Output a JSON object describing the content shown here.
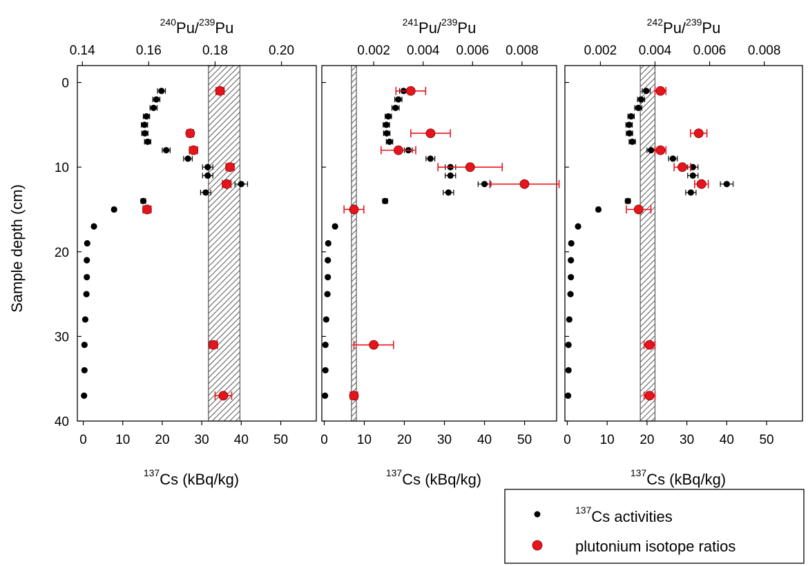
{
  "chart_data": [
    {
      "type": "scatter",
      "ylabel": "Sample depth (cm)",
      "ylim": [
        40,
        -2
      ],
      "yticks": [
        0,
        10,
        20,
        30,
        40
      ],
      "x_bottom": {
        "label_sup": "137",
        "label_main": "Cs (kBq/kg)",
        "lim": [
          -1.5,
          59
        ],
        "ticks": [
          0,
          10,
          20,
          30,
          40,
          50
        ]
      },
      "x_top": {
        "label_parts": [
          "240",
          "Pu/",
          "239",
          "Pu"
        ],
        "lim": [
          0.1385,
          0.2105
        ],
        "ticks": [
          0.14,
          0.16,
          0.18,
          0.2
        ],
        "tick_labels": [
          "0.14",
          "0.16",
          "0.18",
          "0.20"
        ]
      },
      "band": {
        "range": [
          0.178,
          0.1875
        ]
      },
      "cs": [
        {
          "depth": 1,
          "value": 19.8,
          "err": 1.0
        },
        {
          "depth": 2,
          "value": 18.5,
          "err": 0.9
        },
        {
          "depth": 3,
          "value": 17.8,
          "err": 0.9
        },
        {
          "depth": 4,
          "value": 16.0,
          "err": 0.8
        },
        {
          "depth": 5,
          "value": 15.5,
          "err": 0.8
        },
        {
          "depth": 6,
          "value": 15.6,
          "err": 0.8
        },
        {
          "depth": 7,
          "value": 16.3,
          "err": 0.8
        },
        {
          "depth": 8,
          "value": 21.0,
          "err": 1.0
        },
        {
          "depth": 9,
          "value": 26.5,
          "err": 1.1
        },
        {
          "depth": 10,
          "value": 31.5,
          "err": 1.3
        },
        {
          "depth": 11,
          "value": 31.5,
          "err": 1.3
        },
        {
          "depth": 12,
          "value": 40.0,
          "err": 1.6
        },
        {
          "depth": 13,
          "value": 31.0,
          "err": 1.3
        },
        {
          "depth": 14,
          "value": 15.2,
          "err": 0.6
        },
        {
          "depth": 15,
          "value": 7.8,
          "err": 0.4
        },
        {
          "depth": 17,
          "value": 2.7,
          "err": 0.2
        },
        {
          "depth": 19,
          "value": 1.0,
          "err": 0
        },
        {
          "depth": 21,
          "value": 0.9,
          "err": 0
        },
        {
          "depth": 23,
          "value": 0.9,
          "err": 0
        },
        {
          "depth": 25,
          "value": 0.8,
          "err": 0
        },
        {
          "depth": 28,
          "value": 0.5,
          "err": 0
        },
        {
          "depth": 31,
          "value": 0.3,
          "err": 0
        },
        {
          "depth": 34,
          "value": 0.3,
          "err": 0
        },
        {
          "depth": 37,
          "value": 0.2,
          "err": 0
        }
      ],
      "pu": [
        {
          "depth": 1,
          "value": 0.1815,
          "err": 0.0012
        },
        {
          "depth": 6,
          "value": 0.1725,
          "err": 0.001
        },
        {
          "depth": 8,
          "value": 0.1735,
          "err": 0.0012
        },
        {
          "depth": 10,
          "value": 0.1845,
          "err": 0.0012
        },
        {
          "depth": 12,
          "value": 0.1835,
          "err": 0.0013
        },
        {
          "depth": 15,
          "value": 0.1595,
          "err": 0.0012
        },
        {
          "depth": 31,
          "value": 0.1795,
          "err": 0.0012
        },
        {
          "depth": 37,
          "value": 0.1825,
          "err": 0.0025
        }
      ]
    },
    {
      "type": "scatter",
      "ylim": [
        40,
        -2
      ],
      "x_bottom": {
        "label_sup": "137",
        "label_main": "Cs (kBq/kg)",
        "lim": [
          -0.6,
          58
        ],
        "ticks": [
          0,
          10,
          20,
          30,
          40,
          50
        ]
      },
      "x_top": {
        "label_parts": [
          "241",
          "Pu/",
          "239",
          "Pu"
        ],
        "lim": [
          -0.0001,
          0.0094
        ],
        "ticks": [
          0.002,
          0.004,
          0.006,
          0.008
        ],
        "tick_labels": [
          "0.002",
          "0.004",
          "0.006",
          "0.008"
        ]
      },
      "band": {
        "range": [
          0.0011,
          0.0013
        ]
      },
      "cs": [
        {
          "depth": 1,
          "value": 19.8,
          "err": 1.0
        },
        {
          "depth": 2,
          "value": 18.5,
          "err": 0.9
        },
        {
          "depth": 3,
          "value": 17.8,
          "err": 0.9
        },
        {
          "depth": 4,
          "value": 16.0,
          "err": 0.8
        },
        {
          "depth": 5,
          "value": 15.5,
          "err": 0.8
        },
        {
          "depth": 6,
          "value": 15.6,
          "err": 0.8
        },
        {
          "depth": 7,
          "value": 16.3,
          "err": 0.8
        },
        {
          "depth": 8,
          "value": 21.0,
          "err": 1.0
        },
        {
          "depth": 9,
          "value": 26.5,
          "err": 1.1
        },
        {
          "depth": 10,
          "value": 31.5,
          "err": 1.3
        },
        {
          "depth": 11,
          "value": 31.5,
          "err": 1.3
        },
        {
          "depth": 12,
          "value": 40.0,
          "err": 1.6
        },
        {
          "depth": 13,
          "value": 31.0,
          "err": 1.3
        },
        {
          "depth": 14,
          "value": 15.2,
          "err": 0.6
        },
        {
          "depth": 15,
          "value": 7.8,
          "err": 0.4
        },
        {
          "depth": 17,
          "value": 2.7,
          "err": 0.2
        },
        {
          "depth": 19,
          "value": 1.0,
          "err": 0
        },
        {
          "depth": 21,
          "value": 0.9,
          "err": 0
        },
        {
          "depth": 23,
          "value": 0.9,
          "err": 0
        },
        {
          "depth": 25,
          "value": 0.8,
          "err": 0
        },
        {
          "depth": 28,
          "value": 0.5,
          "err": 0
        },
        {
          "depth": 31,
          "value": 0.3,
          "err": 0
        },
        {
          "depth": 34,
          "value": 0.3,
          "err": 0
        },
        {
          "depth": 37,
          "value": 0.2,
          "err": 0
        }
      ],
      "pu": [
        {
          "depth": 1,
          "value": 0.0035,
          "err": 0.0006
        },
        {
          "depth": 6,
          "value": 0.0043,
          "err": 0.0008
        },
        {
          "depth": 8,
          "value": 0.003,
          "err": 0.0007
        },
        {
          "depth": 10,
          "value": 0.0059,
          "err": 0.0013
        },
        {
          "depth": 12,
          "value": 0.0081,
          "err": 0.0014
        },
        {
          "depth": 15,
          "value": 0.0012,
          "err": 0.0004
        },
        {
          "depth": 31,
          "value": 0.002,
          "err": 0.0008
        },
        {
          "depth": 37,
          "value": 0.0012,
          "err": 0.00015
        }
      ]
    },
    {
      "type": "scatter",
      "ylim": [
        40,
        -2
      ],
      "x_bottom": {
        "label_sup": "137",
        "label_main": "Cs (kBq/kg)",
        "lim": [
          -0.6,
          59
        ],
        "ticks": [
          0,
          10,
          20,
          30,
          40,
          50
        ]
      },
      "x_top": {
        "label_parts": [
          "242",
          "Pu/",
          "239",
          "Pu"
        ],
        "lim": [
          0.0007,
          0.0094
        ],
        "ticks": [
          0.002,
          0.004,
          0.006,
          0.008
        ],
        "tick_labels": [
          "0.002",
          "0.004",
          "0.006",
          "0.008"
        ]
      },
      "band": {
        "range": [
          0.00346,
          0.004
        ]
      },
      "cs": [
        {
          "depth": 1,
          "value": 19.8,
          "err": 1.0
        },
        {
          "depth": 2,
          "value": 18.5,
          "err": 0.9
        },
        {
          "depth": 3,
          "value": 17.8,
          "err": 0.9
        },
        {
          "depth": 4,
          "value": 16.0,
          "err": 0.8
        },
        {
          "depth": 5,
          "value": 15.5,
          "err": 0.8
        },
        {
          "depth": 6,
          "value": 15.6,
          "err": 0.8
        },
        {
          "depth": 7,
          "value": 16.3,
          "err": 0.8
        },
        {
          "depth": 8,
          "value": 21.0,
          "err": 1.0
        },
        {
          "depth": 9,
          "value": 26.5,
          "err": 1.1
        },
        {
          "depth": 10,
          "value": 31.5,
          "err": 1.3
        },
        {
          "depth": 11,
          "value": 31.5,
          "err": 1.3
        },
        {
          "depth": 12,
          "value": 40.0,
          "err": 1.6
        },
        {
          "depth": 13,
          "value": 31.0,
          "err": 1.3
        },
        {
          "depth": 14,
          "value": 15.2,
          "err": 0.6
        },
        {
          "depth": 15,
          "value": 7.8,
          "err": 0.4
        },
        {
          "depth": 17,
          "value": 2.7,
          "err": 0.2
        },
        {
          "depth": 19,
          "value": 1.0,
          "err": 0
        },
        {
          "depth": 21,
          "value": 0.9,
          "err": 0
        },
        {
          "depth": 23,
          "value": 0.9,
          "err": 0
        },
        {
          "depth": 25,
          "value": 0.8,
          "err": 0
        },
        {
          "depth": 28,
          "value": 0.5,
          "err": 0
        },
        {
          "depth": 31,
          "value": 0.3,
          "err": 0
        },
        {
          "depth": 34,
          "value": 0.3,
          "err": 0
        },
        {
          "depth": 37,
          "value": 0.2,
          "err": 0
        }
      ],
      "pu": [
        {
          "depth": 1,
          "value": 0.0042,
          "err": 0.0002
        },
        {
          "depth": 6,
          "value": 0.0056,
          "err": 0.0003
        },
        {
          "depth": 8,
          "value": 0.0042,
          "err": 0.0002
        },
        {
          "depth": 10,
          "value": 0.005,
          "err": 0.0003
        },
        {
          "depth": 12,
          "value": 0.0057,
          "err": 0.00025
        },
        {
          "depth": 15,
          "value": 0.0034,
          "err": 0.00045
        },
        {
          "depth": 31,
          "value": 0.0038,
          "err": 0.0002
        },
        {
          "depth": 37,
          "value": 0.0038,
          "err": 0.0002
        }
      ]
    }
  ],
  "legend": {
    "items": [
      {
        "sup": "137",
        "text": "Cs activities",
        "color": "#000000"
      },
      {
        "sup": "",
        "text": "plutonium isotope ratios",
        "color": "#e8141c"
      }
    ]
  },
  "colors": {
    "cs_marker": "#000000",
    "pu_marker": "#e8141c",
    "band_stroke": "#555555"
  }
}
